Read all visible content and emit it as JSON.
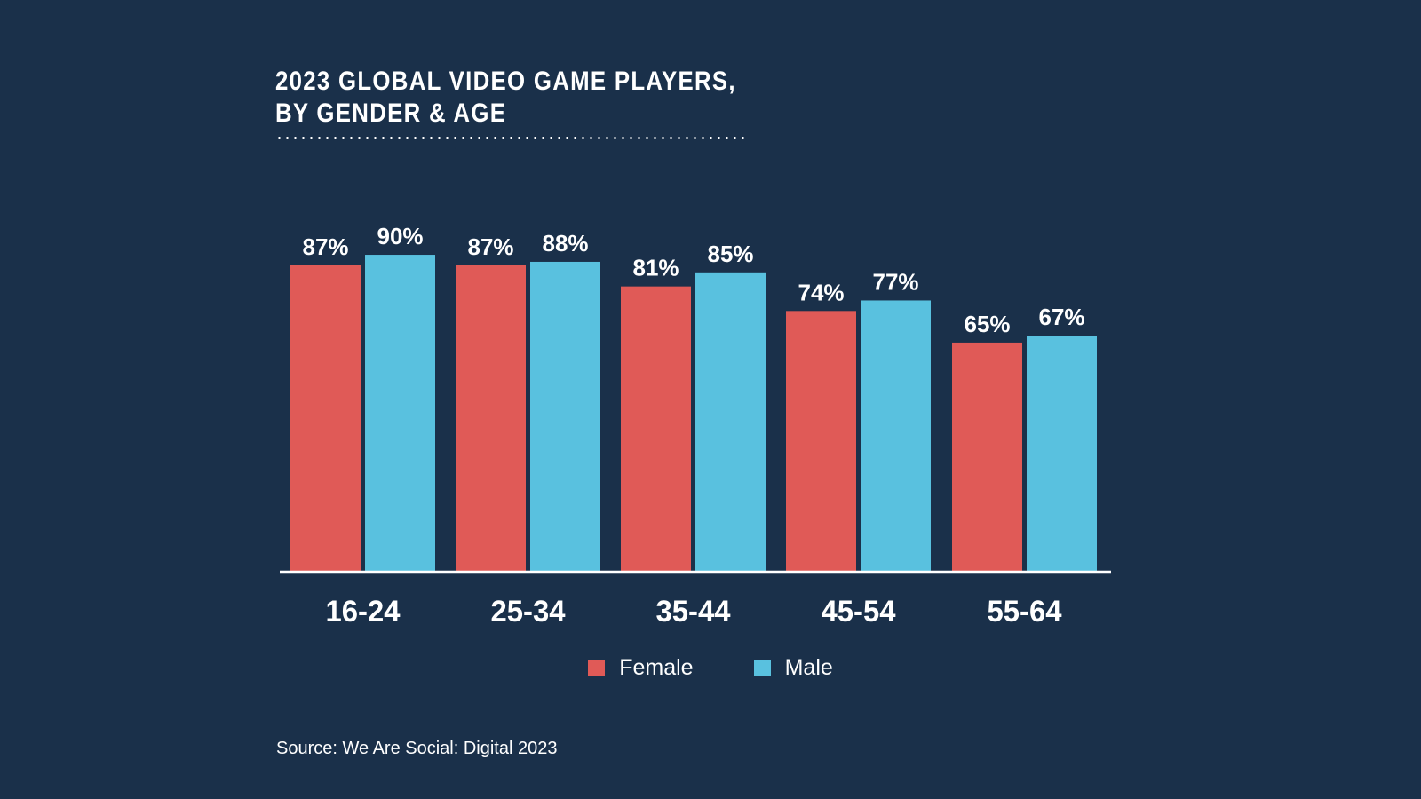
{
  "chart_data": {
    "type": "bar",
    "title": "2023 GLOBAL VIDEO GAME PLAYERS, BY GENDER & AGE",
    "title_lines": [
      "2023 GLOBAL VIDEO GAME PLAYERS,",
      "BY GENDER & AGE"
    ],
    "xlabel": "",
    "ylabel": "",
    "categories": [
      "16-24",
      "25-34",
      "35-44",
      "45-54",
      "55-64"
    ],
    "series": [
      {
        "name": "Female",
        "color": "#e05a57",
        "values": [
          87,
          87,
          81,
          74,
          65
        ],
        "labels": [
          "87%",
          "87%",
          "81%",
          "74%",
          "65%"
        ]
      },
      {
        "name": "Male",
        "color": "#59c1df",
        "values": [
          90,
          88,
          85,
          77,
          67
        ],
        "labels": [
          "90%",
          "88%",
          "85%",
          "77%",
          "67%"
        ]
      }
    ],
    "ylim": [
      0,
      100
    ],
    "grid": false,
    "legend": "bottom-center",
    "value_unit": "%"
  },
  "theme": {
    "background": "#1a304a",
    "text": "#ffffff",
    "axis": "#ffffff"
  },
  "source": "Source: We Are Social: Digital 2023"
}
